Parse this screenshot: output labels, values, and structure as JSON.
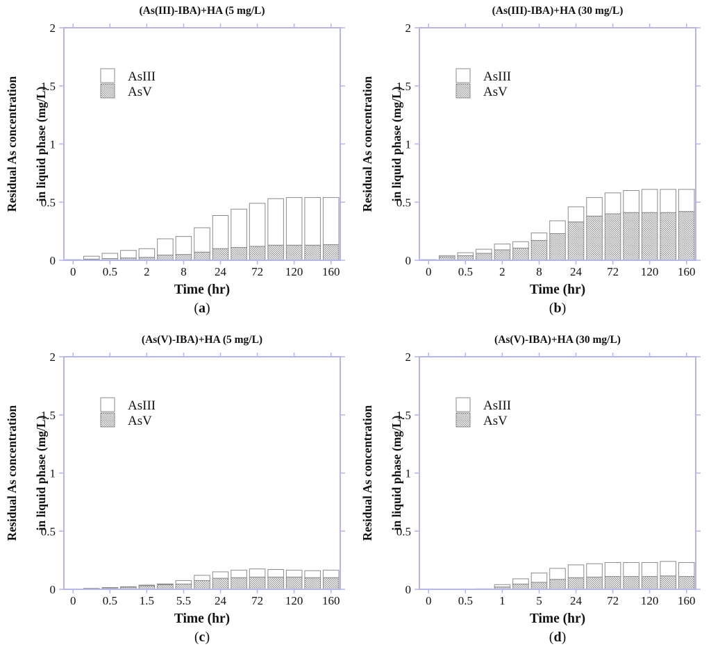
{
  "figure": {
    "axis_color": "#b5b5e9",
    "bar_outline_color": "#8a8a8a",
    "hatch_color": "#9b9b9b",
    "text_color": "#111111",
    "bar_fill_asIII": "#ffffff"
  },
  "chart_data": [
    {
      "id": "a",
      "type": "bar",
      "stacked": true,
      "title": "(As(III)-IBA)+HA (5 mg/L)",
      "sublabel_letter": "a",
      "xlabel": "Time (hr)",
      "ylabel_line1": "Residual As concentration",
      "ylabel_line2": "in liquid phase (mg/L)",
      "ylim": [
        0,
        2
      ],
      "ytick_labels": [
        "0",
        "0.5",
        "1",
        "1.5",
        "2"
      ],
      "ytick_values": [
        0,
        0.5,
        1,
        1.5,
        2
      ],
      "categories": [
        "0",
        "0.5",
        "2",
        "8",
        "24",
        "72",
        "120",
        "160"
      ],
      "n_bars": 15,
      "labeled_bar_indices": [
        0,
        2,
        4,
        6,
        8,
        10,
        12,
        14
      ],
      "legend": [
        {
          "label": "AsIII",
          "swatch": "white"
        },
        {
          "label": "AsV",
          "swatch": "hatch"
        }
      ],
      "series": [
        {
          "name": "AsV",
          "values": [
            0.002,
            0.01,
            0.015,
            0.02,
            0.025,
            0.045,
            0.05,
            0.07,
            0.1,
            0.11,
            0.12,
            0.13,
            0.13,
            0.13,
            0.135
          ]
        },
        {
          "name": "AsIII",
          "values": [
            0.003,
            0.025,
            0.045,
            0.065,
            0.075,
            0.14,
            0.155,
            0.21,
            0.285,
            0.33,
            0.37,
            0.4,
            0.41,
            0.41,
            0.405
          ]
        }
      ]
    },
    {
      "id": "b",
      "type": "bar",
      "stacked": true,
      "title": "(As(III)-IBA)+HA (30 mg/L)",
      "sublabel_letter": "b",
      "xlabel": "Time (hr)",
      "ylabel_line1": "Residual As concentration",
      "ylabel_line2": "in liquid phase (mg/L)",
      "ylim": [
        0,
        2
      ],
      "ytick_labels": [
        "0",
        "0.5",
        "1",
        "1.5",
        "2"
      ],
      "ytick_values": [
        0,
        0.5,
        1,
        1.5,
        2
      ],
      "categories": [
        "0",
        "0.5",
        "2",
        "8",
        "24",
        "72",
        "120",
        "160"
      ],
      "n_bars": 15,
      "labeled_bar_indices": [
        0,
        2,
        4,
        6,
        8,
        10,
        12,
        14
      ],
      "legend": [
        {
          "label": "AsIII",
          "swatch": "white"
        },
        {
          "label": "AsV",
          "swatch": "hatch"
        }
      ],
      "series": [
        {
          "name": "AsV",
          "values": [
            0.003,
            0.03,
            0.04,
            0.06,
            0.09,
            0.105,
            0.17,
            0.23,
            0.33,
            0.38,
            0.4,
            0.41,
            0.41,
            0.41,
            0.42
          ]
        },
        {
          "name": "AsIII",
          "values": [
            0.002,
            0.01,
            0.025,
            0.035,
            0.05,
            0.055,
            0.065,
            0.11,
            0.13,
            0.16,
            0.18,
            0.19,
            0.2,
            0.2,
            0.19
          ]
        }
      ]
    },
    {
      "id": "c",
      "type": "bar",
      "stacked": true,
      "title": "(As(V)-IBA)+HA (5 mg/L)",
      "sublabel_letter": "c",
      "xlabel": "Time (hr)",
      "ylabel_line1": "Residual As concentration",
      "ylabel_line2": "in liquid phase (mg/L)",
      "ylim": [
        0,
        2
      ],
      "ytick_labels": [
        "0",
        "0.5",
        "1",
        "1.5",
        "2"
      ],
      "ytick_values": [
        0,
        0.5,
        1,
        1.5,
        2
      ],
      "categories": [
        "0",
        "0.5",
        "1.5",
        "5.5",
        "24",
        "72",
        "120",
        "160"
      ],
      "n_bars": 15,
      "labeled_bar_indices": [
        0,
        2,
        4,
        6,
        8,
        10,
        12,
        14
      ],
      "legend": [
        {
          "label": "AsIII",
          "swatch": "white"
        },
        {
          "label": "AsV",
          "swatch": "hatch"
        }
      ],
      "series": [
        {
          "name": "AsV",
          "values": [
            0.002,
            0.006,
            0.012,
            0.018,
            0.03,
            0.04,
            0.045,
            0.075,
            0.095,
            0.1,
            0.105,
            0.105,
            0.105,
            0.1,
            0.1
          ]
        },
        {
          "name": "AsIII",
          "values": [
            0.001,
            0.002,
            0.003,
            0.004,
            0.006,
            0.006,
            0.03,
            0.045,
            0.055,
            0.065,
            0.07,
            0.065,
            0.06,
            0.06,
            0.065
          ]
        }
      ]
    },
    {
      "id": "d",
      "type": "bar",
      "stacked": true,
      "title": "(As(V)-IBA)+HA (30 mg/L)",
      "sublabel_letter": "d",
      "xlabel": "Time (hr)",
      "ylabel_line1": "Residual As concentration",
      "ylabel_line2": "in liquid phase (mg/L)",
      "ylim": [
        0,
        2
      ],
      "ytick_labels": [
        "0",
        "0.5",
        "1",
        "1.5",
        "2"
      ],
      "ytick_values": [
        0,
        0.5,
        1,
        1.5,
        2
      ],
      "categories": [
        "0",
        "0.5",
        "1",
        "5",
        "24",
        "72",
        "120",
        "160"
      ],
      "n_bars": 15,
      "labeled_bar_indices": [
        0,
        2,
        4,
        6,
        8,
        10,
        12,
        14
      ],
      "legend": [
        {
          "label": "AsIII",
          "swatch": "white"
        },
        {
          "label": "AsV",
          "swatch": "hatch"
        }
      ],
      "series": [
        {
          "name": "AsV",
          "values": [
            0.001,
            0.001,
            0.002,
            0.003,
            0.02,
            0.045,
            0.06,
            0.085,
            0.1,
            0.105,
            0.11,
            0.11,
            0.11,
            0.115,
            0.11
          ]
        },
        {
          "name": "AsIII",
          "values": [
            0.001,
            0.001,
            0.001,
            0.001,
            0.02,
            0.045,
            0.08,
            0.095,
            0.11,
            0.115,
            0.12,
            0.12,
            0.12,
            0.125,
            0.12
          ]
        }
      ]
    }
  ]
}
